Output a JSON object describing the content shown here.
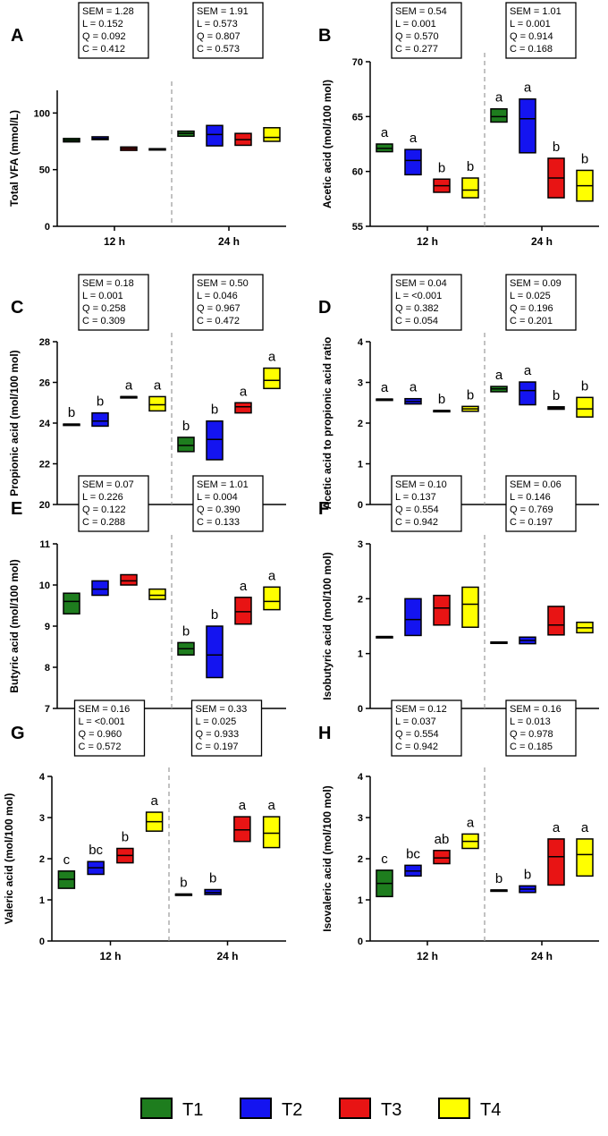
{
  "colors": {
    "T1": "#1e7d1e",
    "T2": "#1414f0",
    "T3": "#e81414",
    "T4": "#ffff00"
  },
  "legend": [
    {
      "label": "T1",
      "color": "#1e7d1e"
    },
    {
      "label": "T2",
      "color": "#1414f0"
    },
    {
      "label": "T3",
      "color": "#e81414"
    },
    {
      "label": "T4",
      "color": "#ffff00"
    }
  ],
  "chart_data": [
    {
      "type": "box",
      "panel": "A",
      "ylabel": "Total VFA (mmol/L)",
      "ylim": [
        0,
        120
      ],
      "yticks": [
        "0",
        "50",
        "100"
      ],
      "tick_values": [
        0,
        50,
        100
      ],
      "groups": [
        "12 h",
        "24 h"
      ],
      "stats": [
        [
          "SEM = 1.28",
          "L = 0.152",
          "Q = 0.092",
          "C = 0.412"
        ],
        [
          "SEM = 1.91",
          "L = 0.573",
          "Q = 0.807",
          "C = 0.573"
        ]
      ],
      "letters": [
        [
          "",
          "",
          "",
          ""
        ],
        [
          "",
          "",
          "",
          ""
        ]
      ],
      "series": [
        {
          "name": "T1",
          "min": [
            74.5,
            79.5
          ],
          "median": [
            76.0,
            82.0
          ],
          "max": [
            77.5,
            84.0
          ]
        },
        {
          "name": "T2",
          "min": [
            76.5,
            71.0
          ],
          "median": [
            77.5,
            81.0
          ],
          "max": [
            79.0,
            89.0
          ]
        },
        {
          "name": "T3",
          "min": [
            67.0,
            71.5
          ],
          "median": [
            68.5,
            76.5
          ],
          "max": [
            70.0,
            82.0
          ]
        },
        {
          "name": "T4",
          "min": [
            68.5,
            75.0
          ],
          "median": [
            68.5,
            78.5
          ],
          "max": [
            68.5,
            87.0
          ]
        }
      ]
    },
    {
      "type": "box",
      "panel": "B",
      "ylabel": "Acetic acid (mol/100 mol)",
      "ylim": [
        55,
        70
      ],
      "yticks": [
        "55",
        "60",
        "65",
        "70"
      ],
      "tick_values": [
        55,
        60,
        65,
        70
      ],
      "groups": [
        "12 h",
        "24 h"
      ],
      "stats": [
        [
          "SEM = 0.54",
          "L = 0.001",
          "Q = 0.570",
          "C = 0.277"
        ],
        [
          "SEM = 1.01",
          "L = 0.001",
          "Q = 0.914",
          "C = 0.168"
        ]
      ],
      "letters": [
        [
          "a",
          "a",
          "b",
          "b"
        ],
        [
          "a",
          "a",
          "b",
          "b"
        ]
      ],
      "series": [
        {
          "name": "T1",
          "min": [
            61.8,
            64.5
          ],
          "median": [
            62.1,
            65.0
          ],
          "max": [
            62.5,
            65.7
          ]
        },
        {
          "name": "T2",
          "min": [
            59.7,
            61.7
          ],
          "median": [
            61.0,
            64.8
          ],
          "max": [
            62.0,
            66.6
          ]
        },
        {
          "name": "T3",
          "min": [
            58.1,
            57.6
          ],
          "median": [
            58.7,
            59.4
          ],
          "max": [
            59.3,
            61.2
          ]
        },
        {
          "name": "T4",
          "min": [
            57.6,
            57.3
          ],
          "median": [
            58.3,
            58.7
          ],
          "max": [
            59.4,
            60.1
          ]
        }
      ]
    },
    {
      "type": "box",
      "panel": "C",
      "ylabel": "Propionic acid (mol/100 mol)",
      "ylim": [
        20,
        28
      ],
      "yticks": [
        "20",
        "22",
        "24",
        "26",
        "28"
      ],
      "tick_values": [
        20,
        22,
        24,
        26,
        28
      ],
      "groups": [
        "12 h",
        "24 h"
      ],
      "stats": [
        [
          "SEM = 0.18",
          "L = 0.001",
          "Q = 0.258",
          "C = 0.309"
        ],
        [
          "SEM = 0.50",
          "L = 0.046",
          "Q = 0.967",
          "C = 0.472"
        ]
      ],
      "letters": [
        [
          "b",
          "b",
          "a",
          "a"
        ],
        [
          "b",
          "b",
          "a",
          "a"
        ]
      ],
      "series": [
        {
          "name": "T1",
          "min": [
            23.95,
            22.6
          ],
          "median": [
            23.95,
            22.9
          ],
          "max": [
            23.95,
            23.3
          ]
        },
        {
          "name": "T2",
          "min": [
            23.85,
            22.2
          ],
          "median": [
            24.1,
            23.2
          ],
          "max": [
            24.5,
            24.1
          ]
        },
        {
          "name": "T3",
          "min": [
            25.3,
            24.5
          ],
          "median": [
            25.3,
            24.8
          ],
          "max": [
            25.3,
            25.0
          ]
        },
        {
          "name": "T4",
          "min": [
            24.6,
            25.7
          ],
          "median": [
            24.9,
            26.1
          ],
          "max": [
            25.3,
            26.7
          ]
        }
      ]
    },
    {
      "type": "box",
      "panel": "D",
      "ylabel": "Acetic acid to propionic acid ratio",
      "ylim": [
        0,
        4
      ],
      "yticks": [
        "0",
        "1",
        "2",
        "3",
        "4"
      ],
      "tick_values": [
        0,
        1,
        2,
        3,
        4
      ],
      "groups": [
        "12 h",
        "24 h"
      ],
      "stats": [
        [
          "SEM = 0.04",
          "L = <0.001",
          "Q = 0.382",
          "C = 0.054"
        ],
        [
          "SEM = 0.09",
          "L = 0.025",
          "Q = 0.196",
          "C = 0.201"
        ]
      ],
      "letters": [
        [
          "a",
          "a",
          "b",
          "b"
        ],
        [
          "a",
          "a",
          "b",
          "b"
        ]
      ],
      "series": [
        {
          "name": "T1",
          "min": [
            2.59,
            2.77
          ],
          "median": [
            2.59,
            2.84
          ],
          "max": [
            2.59,
            2.9
          ]
        },
        {
          "name": "T2",
          "min": [
            2.47,
            2.45
          ],
          "median": [
            2.53,
            2.8
          ],
          "max": [
            2.6,
            3.01
          ]
        },
        {
          "name": "T3",
          "min": [
            2.31,
            2.34
          ],
          "median": [
            2.31,
            2.37
          ],
          "max": [
            2.31,
            2.4
          ]
        },
        {
          "name": "T4",
          "min": [
            2.29,
            2.15
          ],
          "median": [
            2.35,
            2.35
          ],
          "max": [
            2.41,
            2.63
          ]
        }
      ]
    },
    {
      "type": "box",
      "panel": "E",
      "ylabel": "Butyric acid (mol/100 mol)",
      "ylim": [
        7,
        11
      ],
      "yticks": [
        "7",
        "8",
        "9",
        "10",
        "11"
      ],
      "tick_values": [
        7,
        8,
        9,
        10,
        11
      ],
      "groups": [
        "12 h",
        "24 h"
      ],
      "stats": [
        [
          "SEM = 0.07",
          "L = 0.226",
          "Q = 0.122",
          "C = 0.288"
        ],
        [
          "SEM = 1.01",
          "L = 0.004",
          "Q = 0.390",
          "C = 0.133"
        ]
      ],
      "letters": [
        [
          "",
          "",
          "",
          ""
        ],
        [
          "b",
          "b",
          "a",
          "a"
        ]
      ],
      "series": [
        {
          "name": "T1",
          "min": [
            9.3,
            8.3
          ],
          "median": [
            9.6,
            8.45
          ],
          "max": [
            9.8,
            8.6
          ]
        },
        {
          "name": "T2",
          "min": [
            9.75,
            7.75
          ],
          "median": [
            9.9,
            8.3
          ],
          "max": [
            10.1,
            9.0
          ]
        },
        {
          "name": "T3",
          "min": [
            10.0,
            9.05
          ],
          "median": [
            10.1,
            9.35
          ],
          "max": [
            10.25,
            9.7
          ]
        },
        {
          "name": "T4",
          "min": [
            9.65,
            9.4
          ],
          "median": [
            9.75,
            9.6
          ],
          "max": [
            9.9,
            9.95
          ]
        }
      ]
    },
    {
      "type": "box",
      "panel": "F",
      "ylabel": "Isobutyric acid (mol/100 mol)",
      "ylim": [
        0,
        3
      ],
      "yticks": [
        "0",
        "1",
        "2",
        "3"
      ],
      "tick_values": [
        0,
        1,
        2,
        3
      ],
      "groups": [
        "12 h",
        "24 h"
      ],
      "stats": [
        [
          "SEM = 0.10",
          "L = 0.137",
          "Q = 0.554",
          "C = 0.942"
        ],
        [
          "SEM = 0.06",
          "L = 0.146",
          "Q = 0.769",
          "C = 0.197"
        ]
      ],
      "letters": [
        [
          "",
          "",
          "",
          ""
        ],
        [
          "",
          "",
          "",
          ""
        ]
      ],
      "series": [
        {
          "name": "T1",
          "min": [
            1.31,
            1.21
          ],
          "median": [
            1.31,
            1.21
          ],
          "max": [
            1.31,
            1.21
          ]
        },
        {
          "name": "T2",
          "min": [
            1.33,
            1.18
          ],
          "median": [
            1.62,
            1.24
          ],
          "max": [
            2.0,
            1.3
          ]
        },
        {
          "name": "T3",
          "min": [
            1.52,
            1.34
          ],
          "median": [
            1.83,
            1.52
          ],
          "max": [
            2.06,
            1.86
          ]
        },
        {
          "name": "T4",
          "min": [
            1.48,
            1.38
          ],
          "median": [
            1.9,
            1.47
          ],
          "max": [
            2.21,
            1.57
          ]
        }
      ]
    },
    {
      "type": "box",
      "panel": "G",
      "ylabel": "Valeric acid (mol/100 mol)",
      "ylim": [
        0,
        4
      ],
      "yticks": [
        "0",
        "1",
        "2",
        "3",
        "4"
      ],
      "tick_values": [
        0,
        1,
        2,
        3,
        4
      ],
      "groups": [
        "12 h",
        "24 h"
      ],
      "stats": [
        [
          "SEM = 0.16",
          "L = <0.001",
          "Q = 0.960",
          "C = 0.572"
        ],
        [
          "SEM = 0.33",
          "L = 0.025",
          "Q = 0.933",
          "C = 0.197"
        ]
      ],
      "letters": [
        [
          "c",
          "bc",
          "b",
          "a"
        ],
        [
          "b",
          "b",
          "a",
          "a"
        ]
      ],
      "series": [
        {
          "name": "T1",
          "min": [
            1.28,
            1.14
          ],
          "median": [
            1.5,
            1.14
          ],
          "max": [
            1.7,
            1.14
          ]
        },
        {
          "name": "T2",
          "min": [
            1.62,
            1.13
          ],
          "median": [
            1.78,
            1.18
          ],
          "max": [
            1.93,
            1.25
          ]
        },
        {
          "name": "T3",
          "min": [
            1.9,
            2.42
          ],
          "median": [
            2.08,
            2.7
          ],
          "max": [
            2.25,
            3.02
          ]
        },
        {
          "name": "T4",
          "min": [
            2.67,
            2.27
          ],
          "median": [
            2.9,
            2.62
          ],
          "max": [
            3.13,
            3.02
          ]
        }
      ]
    },
    {
      "type": "box",
      "panel": "H",
      "ylabel": "Isovaleric acid (mol/100 mol)",
      "ylim": [
        0,
        4
      ],
      "yticks": [
        "0",
        "1",
        "2",
        "3",
        "4"
      ],
      "tick_values": [
        0,
        1,
        2,
        3,
        4
      ],
      "groups": [
        "12 h",
        "24 h"
      ],
      "stats": [
        [
          "SEM = 0.12",
          "L = 0.037",
          "Q = 0.554",
          "C = 0.942"
        ],
        [
          "SEM = 0.16",
          "L = 0.013",
          "Q = 0.978",
          "C = 0.185"
        ]
      ],
      "letters": [
        [
          "c",
          "bc",
          "ab",
          "a"
        ],
        [
          "b",
          "b",
          "a",
          "a"
        ]
      ],
      "series": [
        {
          "name": "T1",
          "min": [
            1.08,
            1.24
          ],
          "median": [
            1.4,
            1.24
          ],
          "max": [
            1.72,
            1.24
          ]
        },
        {
          "name": "T2",
          "min": [
            1.58,
            1.18
          ],
          "median": [
            1.7,
            1.26
          ],
          "max": [
            1.84,
            1.34
          ]
        },
        {
          "name": "T3",
          "min": [
            1.88,
            1.36
          ],
          "median": [
            2.02,
            2.05
          ],
          "max": [
            2.2,
            2.48
          ]
        },
        {
          "name": "T4",
          "min": [
            2.25,
            1.58
          ],
          "median": [
            2.42,
            2.1
          ],
          "max": [
            2.6,
            2.48
          ]
        }
      ]
    }
  ]
}
